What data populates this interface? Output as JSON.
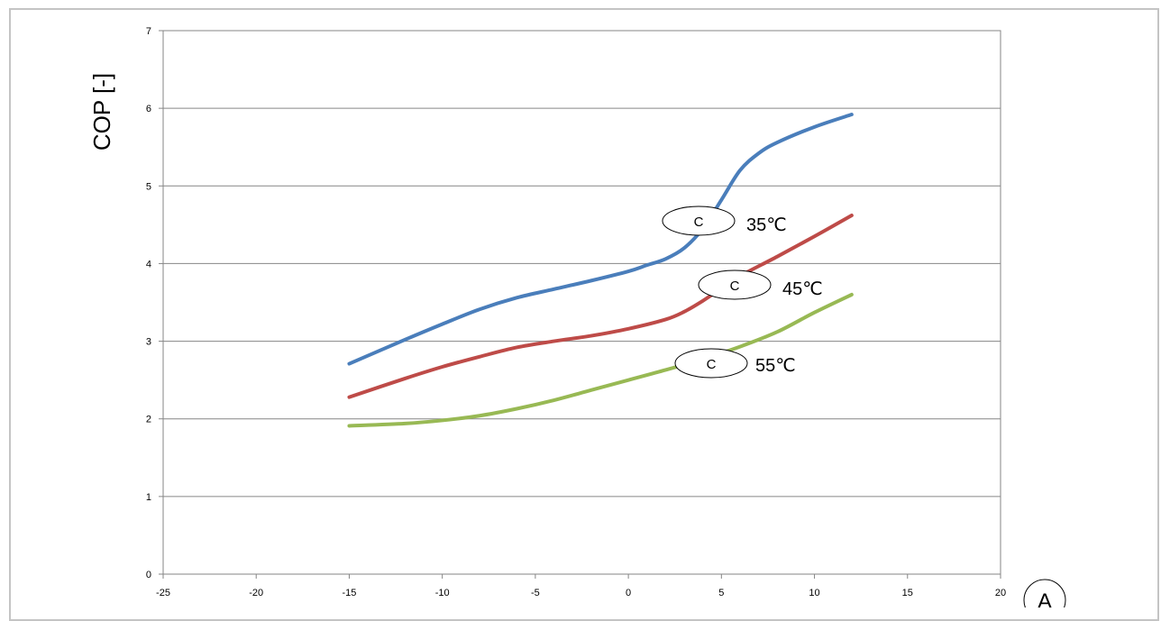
{
  "chart_data": {
    "type": "line",
    "title": "",
    "xlabel": "",
    "ylabel": "COP [-]",
    "xlim": [
      -25,
      20
    ],
    "ylim": [
      0,
      7
    ],
    "xticks": [
      -25,
      -20,
      -15,
      -10,
      -5,
      0,
      5,
      10,
      15,
      20
    ],
    "yticks": [
      0,
      1,
      2,
      3,
      4,
      5,
      6,
      7
    ],
    "grid": "horizontal",
    "x_axis_marker": "A",
    "series": [
      {
        "name": "35℃",
        "color": "#4a7ebb",
        "x": [
          -15,
          -12,
          -10,
          -8,
          -6,
          -4,
          -2,
          0,
          1,
          2,
          3,
          4,
          5,
          6,
          7,
          8,
          10,
          12
        ],
        "y": [
          2.71,
          3.02,
          3.22,
          3.41,
          3.56,
          3.67,
          3.78,
          3.9,
          3.98,
          4.06,
          4.2,
          4.45,
          4.82,
          5.2,
          5.42,
          5.56,
          5.76,
          5.92
        ],
        "marker_label": "C"
      },
      {
        "name": "45℃",
        "color": "#be4b48",
        "x": [
          -15,
          -12,
          -10,
          -8,
          -6,
          -4,
          -2,
          0,
          2,
          3,
          4,
          5,
          6,
          8,
          10,
          12
        ],
        "y": [
          2.28,
          2.52,
          2.67,
          2.8,
          2.92,
          3.0,
          3.07,
          3.16,
          3.28,
          3.38,
          3.52,
          3.68,
          3.84,
          4.09,
          4.35,
          4.62
        ],
        "marker_label": "C"
      },
      {
        "name": "55℃",
        "color": "#98b954",
        "x": [
          -15,
          -12,
          -10,
          -8,
          -6,
          -4,
          -2,
          0,
          2,
          4,
          6,
          8,
          10,
          12
        ],
        "y": [
          1.91,
          1.94,
          1.98,
          2.04,
          2.13,
          2.24,
          2.37,
          2.5,
          2.63,
          2.77,
          2.93,
          3.12,
          3.37,
          3.6
        ],
        "marker_label": "C"
      }
    ]
  }
}
